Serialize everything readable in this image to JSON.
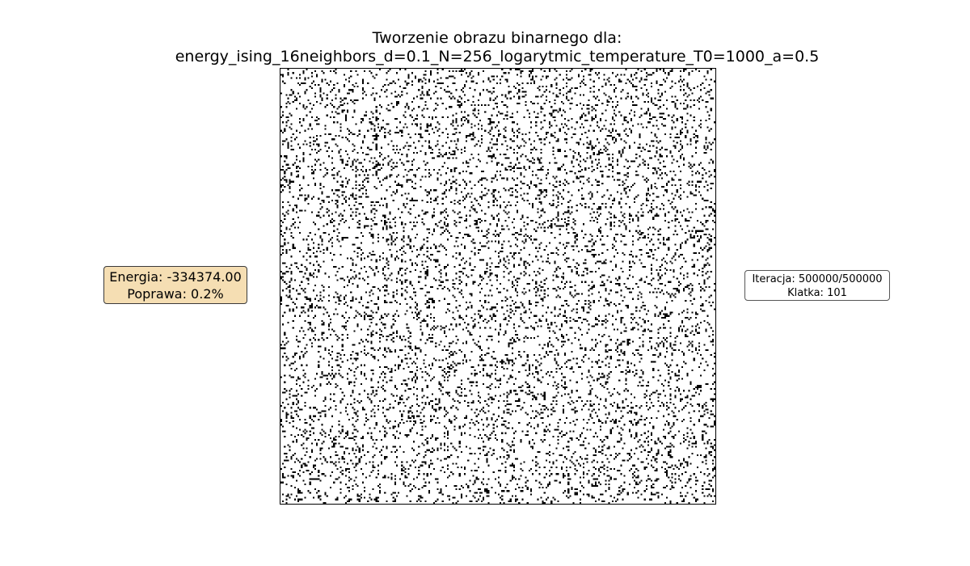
{
  "chart_data": {
    "type": "heatmap",
    "title_line1": "Tworzenie obrazu binarnego dla:",
    "title_line2": "energy_ising_16neighbors_d=0.1_N=256_logarytmic_temperature_T0=1000_a=0.5",
    "grid_size": 256,
    "colors": {
      "on": "#000000",
      "off": "#ffffff"
    },
    "axes": "off"
  },
  "stats": {
    "energy_label": "Energia: -334374.00",
    "improvement_label": "Poprawa: 0.2%",
    "box_color": "#f5deb3"
  },
  "progress": {
    "iteration_label": "Iteracja: 500000/500000",
    "frame_label": "Klatka: 101"
  }
}
